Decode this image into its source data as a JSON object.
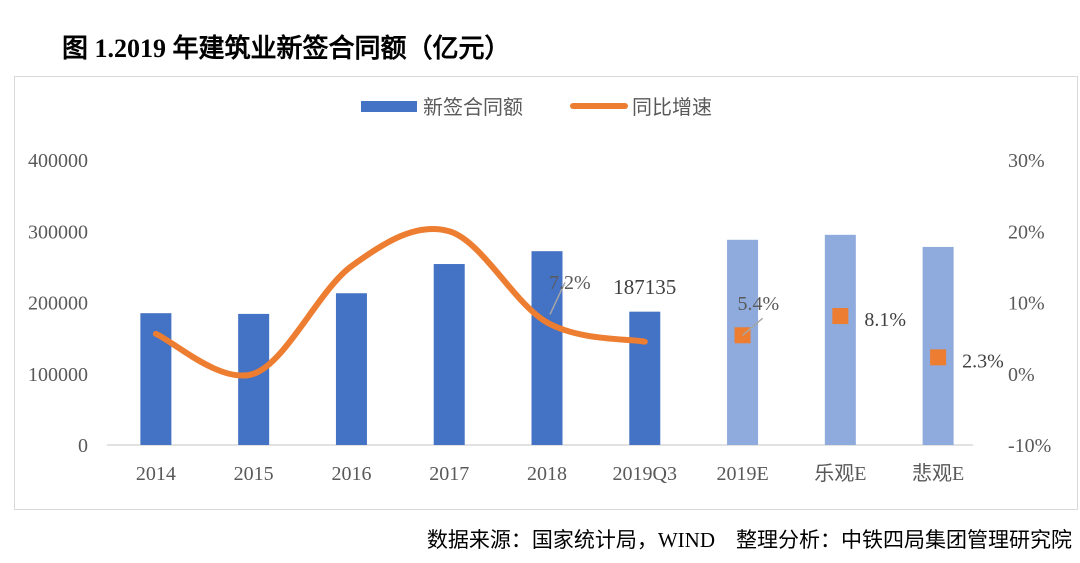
{
  "title": "图 1.2019 年建筑业新签合同额（亿元）",
  "source": "数据来源：国家统计局，WIND　整理分析：中铁四局集团管理研究院",
  "chart_data": {
    "type": "bar+line",
    "categories": [
      "2014",
      "2015",
      "2016",
      "2017",
      "2018",
      "2019Q3",
      "2019E",
      "乐观E",
      "悲观E"
    ],
    "series": [
      {
        "name": "新签合同额",
        "type": "bar",
        "axis": "left",
        "values": [
          185000,
          184000,
          213000,
          254000,
          272000,
          187135,
          288000,
          295000,
          278000
        ],
        "colors": [
          "#4472C4",
          "#4472C4",
          "#4472C4",
          "#4472C4",
          "#4472C4",
          "#4472C4",
          "#8FAADC",
          "#8FAADC",
          "#8FAADC"
        ]
      },
      {
        "name": "同比增速",
        "type": "line",
        "axis": "right",
        "color": "#ED7D31",
        "values": [
          5.6,
          0.0,
          15.1,
          20.0,
          7.2,
          4.5,
          null,
          null,
          null
        ]
      },
      {
        "type": "scatter",
        "axis": "right",
        "color": "#ED7D31",
        "values": [
          null,
          null,
          null,
          null,
          null,
          null,
          5.4,
          8.1,
          2.3
        ]
      }
    ],
    "data_labels": [
      {
        "category": "2018",
        "text": "7.2%"
      },
      {
        "category": "2019Q3",
        "text": "187135"
      },
      {
        "category": "2019E",
        "text": "5.4%"
      },
      {
        "category": "乐观E",
        "text": "8.1%"
      },
      {
        "category": "悲观E",
        "text": "2.3%"
      }
    ],
    "left_axis": {
      "ylim": [
        0,
        400000
      ],
      "ticks": [
        "0",
        "100000",
        "200000",
        "300000",
        "400000"
      ]
    },
    "right_axis": {
      "ylim": [
        -10,
        30
      ],
      "ticks": [
        "-10%",
        "0%",
        "10%",
        "20%",
        "30%"
      ]
    },
    "legend": {
      "position": "top",
      "entries": [
        "新签合同额",
        "同比增速"
      ]
    },
    "grid": false
  }
}
